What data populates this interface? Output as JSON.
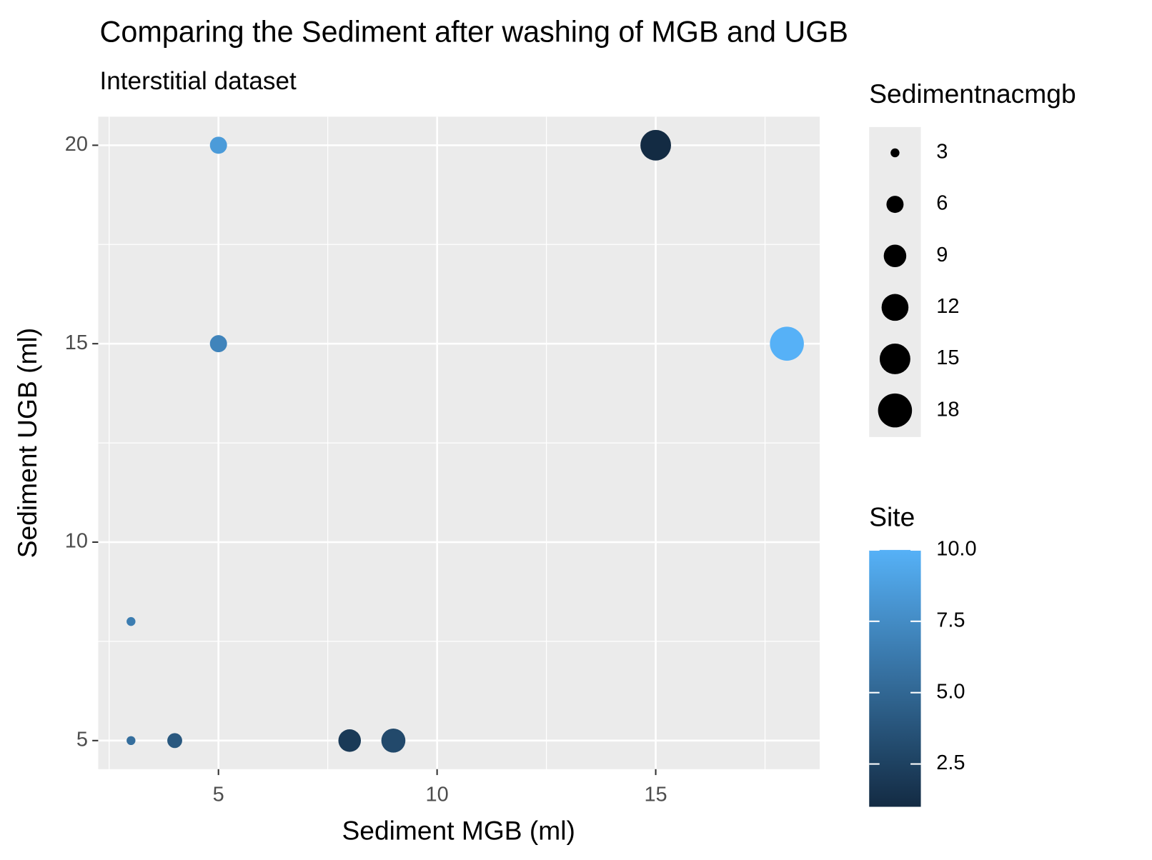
{
  "chart_data": {
    "type": "scatter",
    "title": "Comparing the Sediment after washing of MGB and UGB",
    "subtitle": "Interstitial dataset",
    "x_label": "Sediment MGB (ml)",
    "y_label": "Sediment UGB (ml)",
    "x": [
      5,
      15,
      5,
      18,
      3,
      3,
      4,
      8,
      9
    ],
    "y": [
      20,
      20,
      15,
      15,
      8,
      5,
      5,
      5,
      5
    ],
    "size": [
      6,
      15,
      6,
      18,
      3,
      3,
      5,
      9,
      10
    ],
    "site": [
      8.5,
      1,
      7,
      10,
      6.5,
      5.5,
      4,
      2,
      3
    ],
    "xlim": [
      2.25,
      18.75
    ],
    "xticks": [
      5,
      10,
      15
    ],
    "ylim": [
      4.28,
      20.72
    ],
    "yticks": [
      5,
      10,
      15,
      20
    ],
    "grid": true,
    "size_legend": {
      "title": "Sedimentnacmgb",
      "ticks": [
        3,
        6,
        9,
        12,
        15,
        18
      ]
    },
    "color_legend": {
      "title": "Site",
      "lim": [
        1,
        10
      ],
      "colors": [
        "#132B43",
        "#56B1F7"
      ],
      "ticks": [
        {
          "value": 2.5,
          "label": "2.5"
        },
        {
          "value": 5,
          "label": "5.0"
        },
        {
          "value": 7.5,
          "label": "7.5"
        },
        {
          "value": 10,
          "label": "10.0"
        }
      ]
    }
  }
}
